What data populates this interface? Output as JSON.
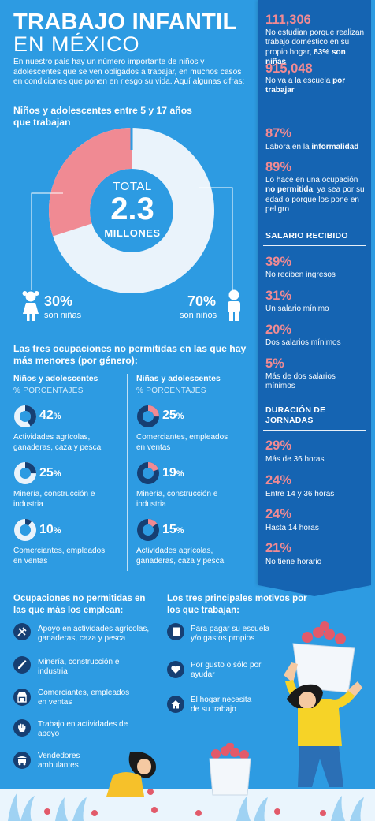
{
  "header": {
    "title": "TRABAJO INFANTIL",
    "subtitle": "EN MÉXICO",
    "intro": "En nuestro país hay un número importante de niños y adolescentes que se ven obligados a trabajar, en muchos casos en condiciones que ponen en riesgo su vida. Aquí algunas cifras:"
  },
  "workers": {
    "heading": "Niños y adolescentes entre 5 y 17 años que trabajan",
    "total_label": "TOTAL",
    "total_value": "2.3",
    "total_unit": "MILLONES",
    "girls_pct": "30%",
    "girls_label": "son niñas",
    "boys_pct": "70%",
    "boys_label": "son niños",
    "girls_fraction": 0.3,
    "colors": {
      "girls": "#f08a93",
      "boys": "#eaf3fb"
    }
  },
  "by_gender": {
    "heading": "Las tres ocupaciones no permitidas en las que hay más menores (por género):",
    "boys": {
      "title": "Niños y adolescentes",
      "unit": "% PORCENTAJES",
      "items": [
        {
          "value": "42",
          "fraction": 0.42,
          "label": "Actividades agrícolas, ganaderas, caza y pesca"
        },
        {
          "value": "25",
          "fraction": 0.25,
          "label": "Minería, construcción e industria"
        },
        {
          "value": "10",
          "fraction": 0.1,
          "label": "Comerciantes, empleados en ventas"
        }
      ]
    },
    "girls": {
      "title": "Niñas y adolescentes",
      "unit": "% PORCENTAJES",
      "items": [
        {
          "value": "25",
          "fraction": 0.25,
          "label": "Comerciantes, empleados en ventas"
        },
        {
          "value": "19",
          "fraction": 0.19,
          "label": "Minería, construcción e industria"
        },
        {
          "value": "15",
          "fraction": 0.15,
          "label": "Actividades agrícolas, ganaderas, caza y pesca"
        }
      ]
    },
    "pct_sign": "%"
  },
  "panel": {
    "stats": [
      {
        "value": "111,306",
        "pre": "No estudian porque realizan trabajo doméstico en su propio hogar, ",
        "bold": "83% son niñas",
        "post": ""
      },
      {
        "value": "915,048",
        "pre": "No va a la escuela ",
        "bold": "por trabajar",
        "post": ""
      },
      {
        "value": "87%",
        "pre": "Labora en la ",
        "bold": "informalidad",
        "post": ""
      },
      {
        "value": "89%",
        "pre": "Lo hace en una ocupación ",
        "bold": "no permitida",
        "post": ", ya sea por su edad o porque los pone en peligro"
      }
    ],
    "salary_heading": "SALARIO RECIBIDO",
    "salary": [
      {
        "value": "39%",
        "label": "No reciben ingresos"
      },
      {
        "value": "31%",
        "label": "Un salario mínimo"
      },
      {
        "value": "20%",
        "label": "Dos salarios mínimos"
      },
      {
        "value": "5%",
        "label": "Más de dos salarios mínimos"
      }
    ],
    "hours_heading": "DURACIÓN DE JORNADAS",
    "hours": [
      {
        "value": "29%",
        "label": "Más de 36 horas"
      },
      {
        "value": "24%",
        "label": "Entre 14 y 36 horas"
      },
      {
        "value": "24%",
        "label": "Hasta 14 horas"
      },
      {
        "value": "21%",
        "label": "No tiene horario"
      }
    ]
  },
  "occupations": {
    "heading": "Ocupaciones no permitidas en las que más los emplean:",
    "items": [
      {
        "icon": "farming-tools-icon",
        "label": "Apoyo en actividades agrícolas, ganaderas, caza y pesca"
      },
      {
        "icon": "shovel-icon",
        "label": "Minería, construcción e industria"
      },
      {
        "icon": "store-icon",
        "label": "Comerciantes, empleados en ventas"
      },
      {
        "icon": "hand-icon",
        "label": "Trabajo en actividades de apoyo"
      },
      {
        "icon": "vendor-cart-icon",
        "label": "Vendedores ambulantes"
      }
    ]
  },
  "reasons": {
    "heading": "Los tres principales motivos por los que trabajan:",
    "items": [
      {
        "icon": "notebook-icon",
        "label": "Para pagar su escuela y/o gastos propios"
      },
      {
        "icon": "heart-icon",
        "label": "Por gusto o sólo por ayudar"
      },
      {
        "icon": "house-icon",
        "label": "El hogar necesita de su trabajo"
      }
    ]
  }
}
